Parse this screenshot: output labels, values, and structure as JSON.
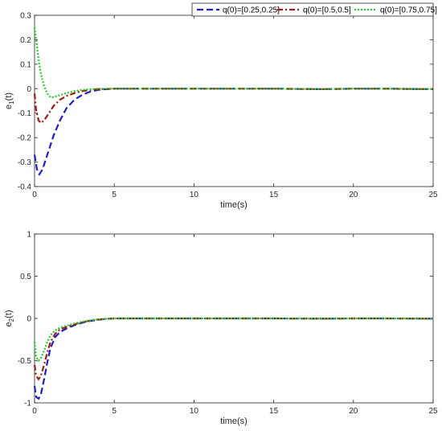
{
  "legend": {
    "entries": [
      {
        "label": "q(0)=[0.25,0.25]",
        "color": "#1f1fbf",
        "dash": "8,4"
      },
      {
        "label": "q(0)=[0.5,0.5]",
        "color": "#9e1b0f",
        "dash": "7,3,2,3"
      },
      {
        "label": "q(0)=[0.75,0.75]",
        "color": "#22cc22",
        "dash": "2,2"
      }
    ],
    "placement": "top-right"
  },
  "chart_data": [
    {
      "type": "line",
      "xlabel": "time(s)",
      "ylabel": "e",
      "ylabel_sub": "1",
      "ylabel_suffix": "(t)",
      "xlim": [
        0,
        25
      ],
      "ylim": [
        -0.4,
        0.3
      ],
      "xticks": [
        "0",
        "5",
        "10",
        "15",
        "20",
        "25"
      ],
      "yticks": [
        "-0.4",
        "-0.3",
        "-0.2",
        "-0.1",
        "0",
        "0.1",
        "0.2",
        "0.3"
      ],
      "xtick_values": [
        0,
        5,
        10,
        15,
        20,
        25
      ],
      "ytick_values": [
        -0.4,
        -0.3,
        -0.2,
        -0.1,
        0,
        0.1,
        0.2,
        0.3
      ],
      "grid": false,
      "series": [
        {
          "name": "q(0)=[0.25,0.25]",
          "color": "#1f1fbf",
          "x": [
            0,
            0.15,
            0.3,
            0.5,
            0.8,
            1.2,
            1.6,
            2.0,
            2.5,
            3.0,
            3.5,
            4.0,
            4.5,
            5,
            7,
            10,
            12,
            15,
            18,
            20,
            22,
            25
          ],
          "y": [
            -0.27,
            -0.33,
            -0.35,
            -0.33,
            -0.27,
            -0.19,
            -0.13,
            -0.08,
            -0.045,
            -0.025,
            -0.012,
            -0.005,
            -0.002,
            0.0,
            0.0,
            0.0,
            0.0,
            0.0,
            -0.002,
            0.0,
            0.0,
            -0.002
          ]
        },
        {
          "name": "q(0)=[0.5,0.5]",
          "color": "#9e1b0f",
          "x": [
            0,
            0.1,
            0.25,
            0.4,
            0.6,
            0.9,
            1.2,
            1.6,
            2.0,
            2.5,
            3.0,
            3.5,
            4.0,
            4.5,
            5,
            7,
            10,
            12,
            15,
            18,
            20,
            22,
            25
          ],
          "y": [
            -0.02,
            -0.09,
            -0.13,
            -0.14,
            -0.13,
            -0.1,
            -0.07,
            -0.045,
            -0.03,
            -0.018,
            -0.01,
            -0.005,
            -0.002,
            -0.001,
            0.0,
            0.0,
            0.0,
            0.0,
            0.0,
            -0.002,
            0.0,
            0.0,
            -0.002
          ]
        },
        {
          "name": "q(0)=[0.75,0.75]",
          "color": "#22cc22",
          "x": [
            0,
            0.1,
            0.25,
            0.4,
            0.6,
            0.8,
            1.0,
            1.2,
            1.5,
            2.0,
            2.5,
            3.0,
            3.5,
            4.0,
            5,
            7,
            10,
            12,
            15,
            18,
            20,
            22,
            25
          ],
          "y": [
            0.25,
            0.2,
            0.12,
            0.06,
            0.01,
            -0.02,
            -0.035,
            -0.035,
            -0.028,
            -0.018,
            -0.01,
            -0.005,
            -0.002,
            0.0,
            0.0,
            0.0,
            0.0,
            0.0,
            0.0,
            -0.002,
            0.0,
            0.0,
            -0.002
          ]
        }
      ]
    },
    {
      "type": "line",
      "xlabel": "time(s)",
      "ylabel": "e",
      "ylabel_sub": "2",
      "ylabel_suffix": "(t)",
      "xlim": [
        0,
        25
      ],
      "ylim": [
        -1,
        1
      ],
      "xticks": [
        "0",
        "5",
        "10",
        "15",
        "20",
        "25"
      ],
      "yticks": [
        "-1",
        "-0.5",
        "0",
        "0.5",
        "1"
      ],
      "xtick_values": [
        0,
        5,
        10,
        15,
        20,
        25
      ],
      "ytick_values": [
        -1,
        -0.5,
        0,
        0.5,
        1
      ],
      "grid": false,
      "series": [
        {
          "name": "q(0)=[0.25,0.25]",
          "color": "#1f1fbf",
          "x": [
            0,
            0.1,
            0.25,
            0.4,
            0.6,
            0.8,
            1.0,
            1.3,
            1.6,
            2.0,
            2.5,
            3.0,
            3.5,
            4.0,
            4.5,
            5,
            7,
            10,
            12,
            15,
            18,
            20,
            22,
            25
          ],
          "y": [
            -0.8,
            -0.93,
            -0.95,
            -0.9,
            -0.72,
            -0.52,
            -0.35,
            -0.22,
            -0.16,
            -0.12,
            -0.08,
            -0.05,
            -0.03,
            -0.015,
            -0.006,
            0.0,
            0.0,
            0.0,
            0.0,
            0.0,
            -0.003,
            0.0,
            0.0,
            -0.003
          ]
        },
        {
          "name": "q(0)=[0.5,0.5]",
          "color": "#9e1b0f",
          "x": [
            0,
            0.1,
            0.25,
            0.4,
            0.6,
            0.8,
            1.0,
            1.3,
            1.6,
            2.0,
            2.5,
            3.0,
            3.5,
            4.0,
            4.5,
            5,
            7,
            10,
            12,
            15,
            18,
            20,
            22,
            25
          ],
          "y": [
            -0.55,
            -0.68,
            -0.72,
            -0.68,
            -0.55,
            -0.4,
            -0.28,
            -0.18,
            -0.13,
            -0.1,
            -0.07,
            -0.045,
            -0.025,
            -0.012,
            -0.005,
            0.0,
            0.0,
            0.0,
            0.0,
            0.0,
            -0.003,
            0.0,
            0.0,
            -0.003
          ]
        },
        {
          "name": "q(0)=[0.75,0.75]",
          "color": "#22cc22",
          "x": [
            0,
            0.1,
            0.25,
            0.4,
            0.6,
            0.8,
            1.0,
            1.3,
            1.6,
            2.0,
            2.5,
            3.0,
            3.5,
            4.0,
            4.5,
            5,
            7,
            10,
            12,
            15,
            18,
            20,
            22,
            25
          ],
          "y": [
            -0.28,
            -0.46,
            -0.5,
            -0.47,
            -0.38,
            -0.28,
            -0.2,
            -0.14,
            -0.11,
            -0.085,
            -0.06,
            -0.04,
            -0.022,
            -0.01,
            -0.004,
            0.0,
            0.0,
            0.0,
            0.0,
            0.0,
            -0.003,
            0.0,
            0.0,
            -0.003
          ]
        }
      ]
    }
  ]
}
